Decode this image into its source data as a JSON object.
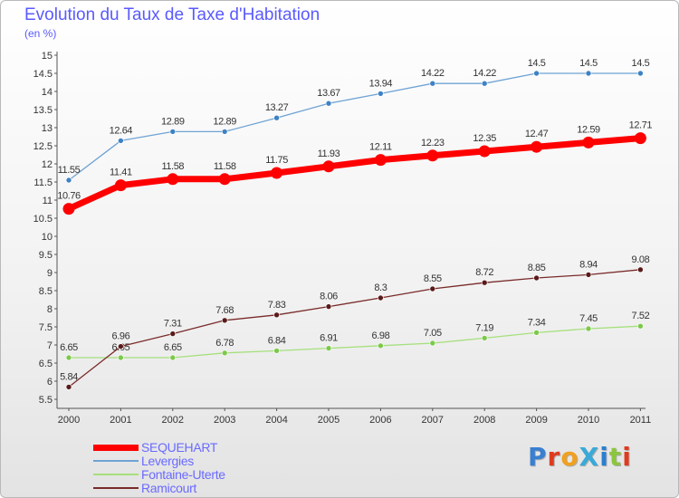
{
  "title": "Evolution du Taux de Taxe d'Habitation",
  "subtitle": "(en %)",
  "logo_text": "ProXiti",
  "logo_colors": [
    "#3a7fd0",
    "#e03a1e",
    "#f0a020",
    "#3aa9d8",
    "#2a7fd0",
    "#8cc63f",
    "#e03a1e"
  ],
  "chart_data": {
    "type": "line",
    "title": "Evolution du Taux de Taxe d'Habitation",
    "ylabel": "(en %)",
    "xlabel": "",
    "categories": [
      "2000",
      "2001",
      "2002",
      "2003",
      "2004",
      "2005",
      "2006",
      "2007",
      "2008",
      "2009",
      "2010",
      "2011"
    ],
    "ylim": [
      5.5,
      15
    ],
    "yticks": [
      "5.5",
      "6",
      "6.5",
      "7",
      "7.5",
      "8",
      "8.5",
      "9",
      "9.5",
      "10",
      "10.5",
      "11",
      "11.5",
      "12",
      "12.5",
      "13",
      "13.5",
      "14",
      "14.5",
      "15"
    ],
    "grid": false,
    "legend_position": "bottom-left",
    "series": [
      {
        "name": "SEQUEHART",
        "color": "#ff0000",
        "bold": true,
        "values": [
          10.76,
          11.41,
          11.58,
          11.58,
          11.75,
          11.93,
          12.11,
          12.23,
          12.35,
          12.47,
          12.59,
          12.71
        ],
        "labels": [
          "10.76",
          "11.41",
          "11.58",
          "11.58",
          "11.75",
          "11.93",
          "12.11",
          "12.23",
          "12.35",
          "12.47",
          "12.59",
          "12.71"
        ]
      },
      {
        "name": "Levergies",
        "color": "#6fa3d4",
        "marker_color": "#3d82c4",
        "values": [
          11.55,
          12.64,
          12.89,
          12.89,
          13.27,
          13.67,
          13.94,
          14.22,
          14.22,
          14.5,
          14.5,
          14.5
        ],
        "labels": [
          "11.55",
          "12.64",
          "12.89",
          "12.89",
          "13.27",
          "13.67",
          "13.94",
          "14.22",
          "14.22",
          "14.5",
          "14.5",
          "14.5"
        ]
      },
      {
        "name": "Fontaine-Uterte",
        "color": "#a6e07c",
        "marker_color": "#7cc94a",
        "values": [
          6.65,
          6.65,
          6.65,
          6.78,
          6.84,
          6.91,
          6.98,
          7.05,
          7.19,
          7.34,
          7.45,
          7.52
        ],
        "labels": [
          "6.65",
          "6.65",
          "6.65",
          "6.78",
          "6.84",
          "6.91",
          "6.98",
          "7.05",
          "7.19",
          "7.34",
          "7.45",
          "7.52"
        ]
      },
      {
        "name": "Ramicourt",
        "color": "#7a2a2a",
        "marker_color": "#5a1a1a",
        "values": [
          5.84,
          6.96,
          7.31,
          7.68,
          7.83,
          8.06,
          8.3,
          8.55,
          8.72,
          8.85,
          8.94,
          9.08
        ],
        "labels": [
          "5.84",
          "6.96",
          "7.31",
          "7.68",
          "7.83",
          "8.06",
          "8.3",
          "8.55",
          "8.72",
          "8.85",
          "8.94",
          "9.08"
        ]
      }
    ]
  }
}
